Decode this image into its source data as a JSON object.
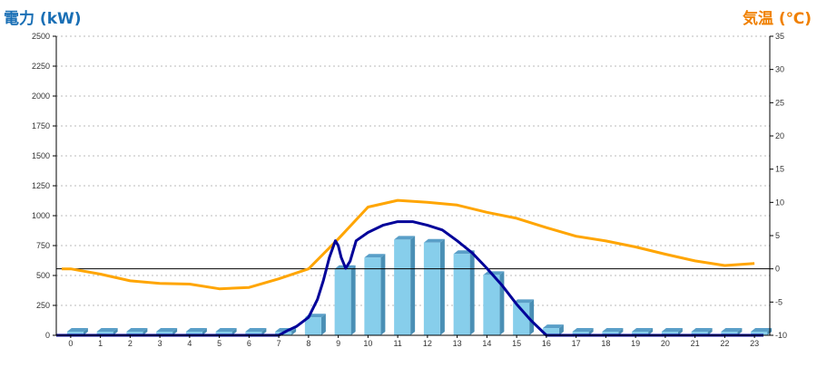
{
  "chart_data": {
    "type": "bar",
    "left_axis_label": "電力 (kW)",
    "right_axis_label": "気温 (℃)",
    "categories": [
      "0",
      "1",
      "2",
      "3",
      "4",
      "5",
      "6",
      "7",
      "8",
      "9",
      "10",
      "11",
      "12",
      "13",
      "14",
      "15",
      "16",
      "17",
      "18",
      "19",
      "20",
      "21",
      "22",
      "23"
    ],
    "y_left": {
      "min": 0,
      "max": 2500,
      "ticks": [
        0,
        250,
        500,
        750,
        1000,
        1250,
        1500,
        1750,
        2000,
        2250,
        2500
      ]
    },
    "y_right": {
      "min": -10,
      "max": 35,
      "ticks": [
        -10,
        -5,
        0,
        5,
        10,
        15,
        20,
        25,
        30,
        35
      ]
    },
    "grid": true,
    "bars": [
      0,
      0,
      0,
      0,
      0,
      0,
      0,
      0,
      150,
      555,
      650,
      800,
      775,
      680,
      505,
      270,
      60,
      0,
      0,
      0,
      0,
      0,
      0,
      0
    ],
    "power_line": [
      [
        7.0,
        0
      ],
      [
        7.3,
        40
      ],
      [
        7.6,
        75
      ],
      [
        8.0,
        150
      ],
      [
        8.3,
        300
      ],
      [
        8.5,
        460
      ],
      [
        8.7,
        650
      ],
      [
        8.9,
        790
      ],
      [
        9.0,
        750
      ],
      [
        9.1,
        650
      ],
      [
        9.25,
        560
      ],
      [
        9.4,
        620
      ],
      [
        9.6,
        790
      ],
      [
        10.0,
        860
      ],
      [
        10.5,
        920
      ],
      [
        11.0,
        950
      ],
      [
        11.5,
        950
      ],
      [
        12.0,
        920
      ],
      [
        12.5,
        880
      ],
      [
        13.0,
        790
      ],
      [
        13.5,
        690
      ],
      [
        14.0,
        560
      ],
      [
        14.5,
        420
      ],
      [
        15.0,
        260
      ],
      [
        15.5,
        120
      ],
      [
        16.0,
        0
      ],
      [
        23.3,
        0
      ]
    ],
    "temperature": [
      [
        -0.3,
        0
      ],
      [
        0,
        0
      ],
      [
        1,
        -0.8
      ],
      [
        2,
        -1.8
      ],
      [
        3,
        -2.2
      ],
      [
        4,
        -2.3
      ],
      [
        5,
        -3
      ],
      [
        6,
        -2.8
      ],
      [
        7,
        -1.5
      ],
      [
        8,
        0
      ],
      [
        9,
        4.5
      ],
      [
        10,
        9.3
      ],
      [
        11,
        10.3
      ],
      [
        12,
        10
      ],
      [
        13,
        9.6
      ],
      [
        14,
        8.5
      ],
      [
        15,
        7.6
      ],
      [
        16,
        6.2
      ],
      [
        17,
        4.9
      ],
      [
        18,
        4.2
      ],
      [
        19,
        3.3
      ],
      [
        20,
        2.2
      ],
      [
        21,
        1.2
      ],
      [
        22,
        0.5
      ],
      [
        23,
        0.8
      ]
    ],
    "bar_color": "#87ceeb",
    "power_line_color": "#000099",
    "temperature_color": "#ffa500"
  }
}
